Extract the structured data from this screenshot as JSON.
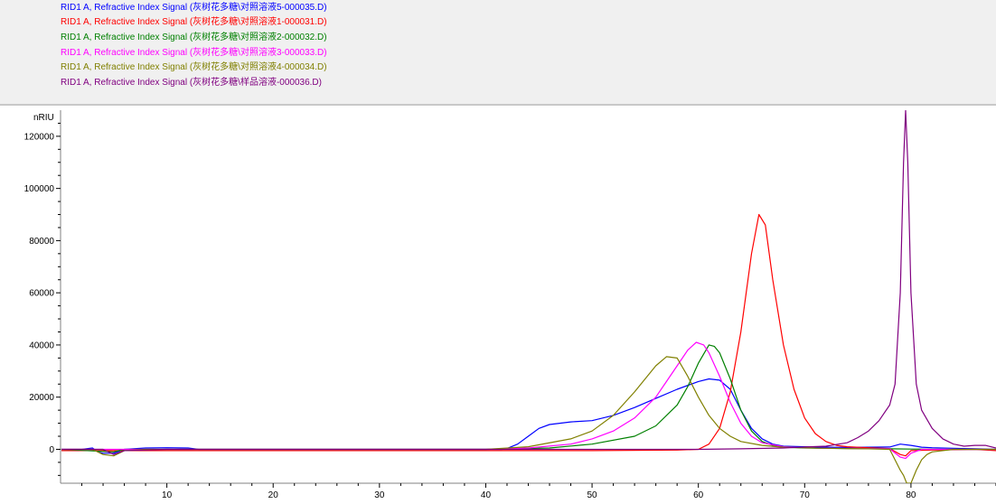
{
  "legend": {
    "entries": [
      {
        "text": "RID1 A, Refractive Index Signal (灰树花多糖\\对照溶液5-000035.D)",
        "color": "#0000ff"
      },
      {
        "text": "RID1 A, Refractive Index Signal (灰树花多糖\\对照溶液1-000031.D)",
        "color": "#ff0000"
      },
      {
        "text": "RID1 A, Refractive Index Signal (灰树花多糖\\对照溶液2-000032.D)",
        "color": "#008000"
      },
      {
        "text": "RID1 A, Refractive Index Signal (灰树花多糖\\对照溶液3-000033.D)",
        "color": "#ff00ff"
      },
      {
        "text": "RID1 A, Refractive Index Signal (灰树花多糖\\对照溶液4-000034.D)",
        "color": "#808000"
      },
      {
        "text": "RID1 A, Refractive Index Signal (灰树花多糖\\样品溶液-000036.D)",
        "color": "#800080"
      }
    ]
  },
  "chart_data": {
    "type": "line",
    "ylabel": "nRIU",
    "xlabel": "",
    "xlim": [
      0,
      88
    ],
    "ylim": [
      -13000,
      130000
    ],
    "x_ticks": [
      "10",
      "20",
      "30",
      "40",
      "50",
      "60",
      "70",
      "80"
    ],
    "y_ticks": [
      "0",
      "20000",
      "40000",
      "60000",
      "80000",
      "100000",
      "120000"
    ],
    "grid": false,
    "series": [
      {
        "legend_index": 0,
        "color": "#0000ff",
        "points": [
          [
            0,
            0
          ],
          [
            2,
            0
          ],
          [
            3,
            500
          ],
          [
            3.5,
            -1000
          ],
          [
            4,
            -1500
          ],
          [
            5,
            -1500
          ],
          [
            6,
            0
          ],
          [
            8,
            500
          ],
          [
            10,
            600
          ],
          [
            12,
            500
          ],
          [
            13,
            0
          ],
          [
            20,
            0
          ],
          [
            30,
            0
          ],
          [
            40,
            0
          ],
          [
            41.5,
            0
          ],
          [
            42,
            300
          ],
          [
            43,
            2000
          ],
          [
            44,
            5000
          ],
          [
            45,
            8000
          ],
          [
            46,
            9500
          ],
          [
            48,
            10500
          ],
          [
            50,
            11000
          ],
          [
            52,
            13000
          ],
          [
            54,
            16000
          ],
          [
            56,
            19500
          ],
          [
            58,
            23000
          ],
          [
            60,
            26000
          ],
          [
            61,
            27000
          ],
          [
            62,
            26500
          ],
          [
            63,
            23000
          ],
          [
            64,
            15000
          ],
          [
            65,
            8000
          ],
          [
            66,
            4000
          ],
          [
            67,
            2000
          ],
          [
            68,
            1200
          ],
          [
            70,
            1000
          ],
          [
            72,
            800
          ],
          [
            74,
            700
          ],
          [
            76,
            800
          ],
          [
            78,
            900
          ],
          [
            79,
            2000
          ],
          [
            80,
            1500
          ],
          [
            81,
            800
          ],
          [
            82,
            600
          ],
          [
            84,
            400
          ],
          [
            86,
            200
          ],
          [
            88,
            0
          ]
        ]
      },
      {
        "legend_index": 1,
        "color": "#ff0000",
        "points": [
          [
            0,
            -500
          ],
          [
            10,
            -500
          ],
          [
            20,
            -500
          ],
          [
            30,
            -500
          ],
          [
            40,
            -500
          ],
          [
            50,
            -500
          ],
          [
            58,
            -300
          ],
          [
            60,
            0
          ],
          [
            61,
            2000
          ],
          [
            62,
            8000
          ],
          [
            63,
            22000
          ],
          [
            64,
            45000
          ],
          [
            65,
            75000
          ],
          [
            65.7,
            90000
          ],
          [
            66.3,
            86000
          ],
          [
            67,
            65000
          ],
          [
            68,
            40000
          ],
          [
            69,
            23000
          ],
          [
            70,
            12000
          ],
          [
            71,
            6000
          ],
          [
            72,
            3000
          ],
          [
            73,
            1500
          ],
          [
            74,
            1000
          ],
          [
            76,
            600
          ],
          [
            78,
            300
          ],
          [
            79,
            -2000
          ],
          [
            79.5,
            -2500
          ],
          [
            80,
            -500
          ],
          [
            82,
            -300
          ],
          [
            86,
            0
          ],
          [
            88,
            -500
          ]
        ]
      },
      {
        "legend_index": 2,
        "color": "#008000",
        "points": [
          [
            0,
            0
          ],
          [
            5,
            -1000
          ],
          [
            6,
            0
          ],
          [
            10,
            0
          ],
          [
            20,
            0
          ],
          [
            30,
            0
          ],
          [
            40,
            0
          ],
          [
            46,
            500
          ],
          [
            50,
            2000
          ],
          [
            54,
            5000
          ],
          [
            56,
            9000
          ],
          [
            58,
            17000
          ],
          [
            59,
            24000
          ],
          [
            60,
            33000
          ],
          [
            61,
            40000
          ],
          [
            61.5,
            39500
          ],
          [
            62,
            37000
          ],
          [
            63,
            27000
          ],
          [
            64,
            15000
          ],
          [
            65,
            7000
          ],
          [
            66,
            3000
          ],
          [
            67,
            1500
          ],
          [
            68,
            800
          ],
          [
            70,
            500
          ],
          [
            74,
            300
          ],
          [
            78,
            200
          ],
          [
            80,
            100
          ],
          [
            84,
            0
          ],
          [
            88,
            0
          ]
        ]
      },
      {
        "legend_index": 3,
        "color": "#ff00ff",
        "points": [
          [
            0,
            0
          ],
          [
            10,
            0
          ],
          [
            20,
            0
          ],
          [
            30,
            0
          ],
          [
            40,
            0
          ],
          [
            44,
            500
          ],
          [
            48,
            2000
          ],
          [
            50,
            4000
          ],
          [
            52,
            7000
          ],
          [
            54,
            12000
          ],
          [
            56,
            20000
          ],
          [
            57,
            26000
          ],
          [
            58,
            32000
          ],
          [
            59,
            38000
          ],
          [
            59.8,
            41000
          ],
          [
            60.5,
            40000
          ],
          [
            61,
            37000
          ],
          [
            62,
            28000
          ],
          [
            63,
            18000
          ],
          [
            64,
            10000
          ],
          [
            65,
            5000
          ],
          [
            66,
            2500
          ],
          [
            68,
            1000
          ],
          [
            70,
            600
          ],
          [
            72,
            400
          ],
          [
            76,
            300
          ],
          [
            78,
            200
          ],
          [
            79,
            -3000
          ],
          [
            79.5,
            -3500
          ],
          [
            80,
            -1500
          ],
          [
            81,
            0
          ],
          [
            84,
            0
          ],
          [
            88,
            0
          ]
        ]
      },
      {
        "legend_index": 4,
        "color": "#808000",
        "points": [
          [
            0,
            0
          ],
          [
            3,
            0
          ],
          [
            4,
            -2000
          ],
          [
            5,
            -2500
          ],
          [
            6,
            -500
          ],
          [
            8,
            0
          ],
          [
            10,
            0
          ],
          [
            20,
            0
          ],
          [
            30,
            0
          ],
          [
            40,
            0
          ],
          [
            44,
            1000
          ],
          [
            48,
            4000
          ],
          [
            50,
            7000
          ],
          [
            52,
            13000
          ],
          [
            54,
            22000
          ],
          [
            56,
            32000
          ],
          [
            57,
            35500
          ],
          [
            58,
            35000
          ],
          [
            59,
            28000
          ],
          [
            60,
            20000
          ],
          [
            61,
            13000
          ],
          [
            62,
            8000
          ],
          [
            63,
            5000
          ],
          [
            64,
            3000
          ],
          [
            66,
            1500
          ],
          [
            68,
            800
          ],
          [
            72,
            400
          ],
          [
            76,
            200
          ],
          [
            78,
            0
          ],
          [
            79,
            -8000
          ],
          [
            79.3,
            -10000
          ],
          [
            79.6,
            -13000
          ],
          [
            80,
            -13000
          ],
          [
            80.5,
            -8000
          ],
          [
            81,
            -4000
          ],
          [
            81.5,
            -2000
          ],
          [
            82,
            -1000
          ],
          [
            84,
            0
          ],
          [
            88,
            0
          ]
        ]
      },
      {
        "legend_index": 5,
        "color": "#800080",
        "points": [
          [
            0,
            0
          ],
          [
            4,
            0
          ],
          [
            5,
            -2000
          ],
          [
            6,
            -500
          ],
          [
            10,
            0
          ],
          [
            20,
            0
          ],
          [
            30,
            0
          ],
          [
            40,
            0
          ],
          [
            50,
            0
          ],
          [
            60,
            0
          ],
          [
            64,
            200
          ],
          [
            68,
            500
          ],
          [
            70,
            900
          ],
          [
            72,
            1200
          ],
          [
            74,
            2500
          ],
          [
            75,
            4500
          ],
          [
            76,
            7000
          ],
          [
            77,
            11000
          ],
          [
            78,
            17000
          ],
          [
            78.5,
            25000
          ],
          [
            79,
            60000
          ],
          [
            79.3,
            110000
          ],
          [
            79.5,
            130000
          ],
          [
            79.7,
            110000
          ],
          [
            80,
            60000
          ],
          [
            80.5,
            25000
          ],
          [
            81,
            15000
          ],
          [
            82,
            8000
          ],
          [
            83,
            4000
          ],
          [
            84,
            2000
          ],
          [
            85,
            1200
          ],
          [
            86,
            1500
          ],
          [
            87,
            1500
          ],
          [
            88,
            500
          ]
        ]
      }
    ]
  }
}
